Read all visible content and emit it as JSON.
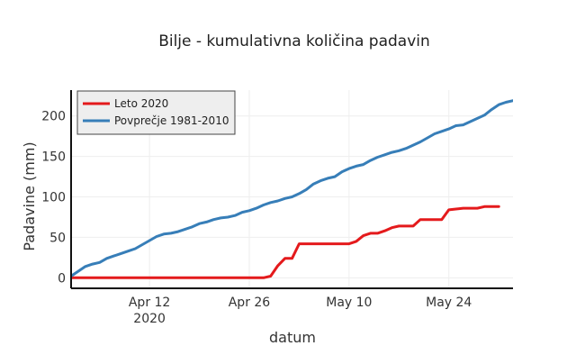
{
  "chart_data": {
    "type": "line",
    "title": "Bilje - kumulativna količina padavin",
    "xlabel": "datum",
    "ylabel": "Padavine (mm)",
    "x_axis": {
      "type": "date",
      "range": [
        "2020-04-01",
        "2020-05-31"
      ],
      "ticks": [
        {
          "date": "2020-04-12",
          "label": "Apr 12",
          "sublabel": "2020"
        },
        {
          "date": "2020-04-26",
          "label": "Apr 26",
          "sublabel": ""
        },
        {
          "date": "2020-05-10",
          "label": "May 10",
          "sublabel": ""
        },
        {
          "date": "2020-05-24",
          "label": "May 24",
          "sublabel": ""
        }
      ]
    },
    "y_axis": {
      "range": [
        -13,
        232
      ],
      "ticks": [
        0,
        50,
        100,
        150,
        200
      ]
    },
    "grid": true,
    "legend": {
      "placement": "top-left"
    },
    "series": [
      {
        "name": "Leto 2020",
        "color": "#e41a1c",
        "points": [
          [
            "2020-04-01",
            0
          ],
          [
            "2020-04-28",
            0
          ],
          [
            "2020-04-29",
            2
          ],
          [
            "2020-04-30",
            15
          ],
          [
            "2020-05-01",
            24
          ],
          [
            "2020-05-02",
            24
          ],
          [
            "2020-05-03",
            42
          ],
          [
            "2020-05-09",
            42
          ],
          [
            "2020-05-10",
            42
          ],
          [
            "2020-05-11",
            45
          ],
          [
            "2020-05-12",
            52
          ],
          [
            "2020-05-13",
            55
          ],
          [
            "2020-05-14",
            55
          ],
          [
            "2020-05-15",
            58
          ],
          [
            "2020-05-16",
            62
          ],
          [
            "2020-05-17",
            64
          ],
          [
            "2020-05-19",
            64
          ],
          [
            "2020-05-20",
            72
          ],
          [
            "2020-05-23",
            72
          ],
          [
            "2020-05-24",
            84
          ],
          [
            "2020-05-25",
            85
          ],
          [
            "2020-05-26",
            86
          ],
          [
            "2020-05-28",
            86
          ],
          [
            "2020-05-29",
            88
          ],
          [
            "2020-05-31",
            88
          ]
        ]
      },
      {
        "name": "Povprečje 1981-2010",
        "color": "#377eb8",
        "points": [
          [
            "2020-04-01",
            2
          ],
          [
            "2020-04-02",
            8
          ],
          [
            "2020-04-03",
            14
          ],
          [
            "2020-04-04",
            17
          ],
          [
            "2020-04-05",
            19
          ],
          [
            "2020-04-06",
            24
          ],
          [
            "2020-04-07",
            27
          ],
          [
            "2020-04-08",
            30
          ],
          [
            "2020-04-09",
            33
          ],
          [
            "2020-04-10",
            36
          ],
          [
            "2020-04-11",
            41
          ],
          [
            "2020-04-12",
            46
          ],
          [
            "2020-04-13",
            51
          ],
          [
            "2020-04-14",
            54
          ],
          [
            "2020-04-15",
            55
          ],
          [
            "2020-04-16",
            57
          ],
          [
            "2020-04-17",
            60
          ],
          [
            "2020-04-18",
            63
          ],
          [
            "2020-04-19",
            67
          ],
          [
            "2020-04-20",
            69
          ],
          [
            "2020-04-21",
            72
          ],
          [
            "2020-04-22",
            74
          ],
          [
            "2020-04-23",
            75
          ],
          [
            "2020-04-24",
            77
          ],
          [
            "2020-04-25",
            81
          ],
          [
            "2020-04-26",
            83
          ],
          [
            "2020-04-27",
            86
          ],
          [
            "2020-04-28",
            90
          ],
          [
            "2020-04-29",
            93
          ],
          [
            "2020-04-30",
            95
          ],
          [
            "2020-05-01",
            98
          ],
          [
            "2020-05-02",
            100
          ],
          [
            "2020-05-03",
            104
          ],
          [
            "2020-05-04",
            109
          ],
          [
            "2020-05-05",
            116
          ],
          [
            "2020-05-06",
            120
          ],
          [
            "2020-05-07",
            123
          ],
          [
            "2020-05-08",
            125
          ],
          [
            "2020-05-09",
            131
          ],
          [
            "2020-05-10",
            135
          ],
          [
            "2020-05-11",
            138
          ],
          [
            "2020-05-12",
            140
          ],
          [
            "2020-05-13",
            145
          ],
          [
            "2020-05-14",
            149
          ],
          [
            "2020-05-15",
            152
          ],
          [
            "2020-05-16",
            155
          ],
          [
            "2020-05-17",
            157
          ],
          [
            "2020-05-18",
            160
          ],
          [
            "2020-05-19",
            164
          ],
          [
            "2020-05-20",
            168
          ],
          [
            "2020-05-21",
            173
          ],
          [
            "2020-05-22",
            178
          ],
          [
            "2020-05-23",
            181
          ],
          [
            "2020-05-24",
            184
          ],
          [
            "2020-05-25",
            188
          ],
          [
            "2020-05-26",
            189
          ],
          [
            "2020-05-27",
            193
          ],
          [
            "2020-05-28",
            197
          ],
          [
            "2020-05-29",
            201
          ],
          [
            "2020-05-30",
            208
          ],
          [
            "2020-05-31",
            214
          ],
          [
            "2020-06-01",
            217
          ],
          [
            "2020-06-02",
            219
          ]
        ]
      }
    ]
  }
}
